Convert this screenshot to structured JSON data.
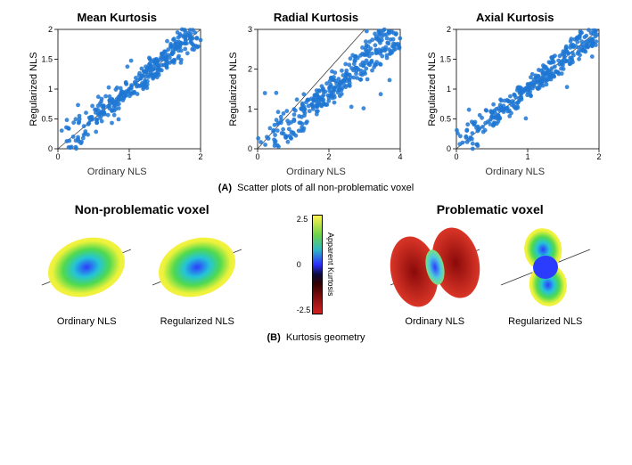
{
  "panelA": {
    "caption_bold": "(A)",
    "caption_text": "Scatter plots of all non-problematic voxel",
    "xlabel": "Ordinary NLS",
    "ylabel": "Regularized  NLS",
    "charts": [
      {
        "title": "Mean Kurtosis",
        "xlim": [
          0,
          2
        ],
        "ylim": [
          0,
          2
        ],
        "xticks": [
          0,
          1,
          2
        ],
        "yticks": [
          0,
          0.5,
          1,
          1.5,
          2
        ],
        "marker_color": "#1f77d4",
        "marker_size": 2.4,
        "diag_color": "#444444",
        "noise": 0.1,
        "n": 340,
        "seed": 17
      },
      {
        "title": "Radial Kurtosis",
        "xlim": [
          0,
          4
        ],
        "ylim": [
          0,
          3
        ],
        "xticks": [
          0,
          2,
          4
        ],
        "yticks": [
          0,
          1,
          2,
          3
        ],
        "marker_color": "#1f77d4",
        "marker_size": 2.4,
        "diag_color": "#444444",
        "noise": 0.14,
        "n": 360,
        "seed": 31
      },
      {
        "title": "Axial Kurtosis",
        "xlim": [
          0,
          2
        ],
        "ylim": [
          0,
          2
        ],
        "xticks": [
          0,
          1,
          2
        ],
        "yticks": [
          0,
          0.5,
          1,
          1.5,
          2
        ],
        "marker_color": "#1f77d4",
        "marker_size": 2.4,
        "diag_color": "#444444",
        "noise": 0.09,
        "n": 330,
        "seed": 53
      }
    ],
    "label_fontsize": 11,
    "tick_fontsize": 9
  },
  "panelB": {
    "caption_bold": "(B)",
    "caption_text": "Kurtosis geometry",
    "groups": [
      {
        "label": "Non-problematic voxel",
        "glyphs": [
          {
            "caption": "Ordinary NLS",
            "type": "lobe-normal"
          },
          {
            "caption": "Regularized NLS",
            "type": "lobe-normal"
          }
        ]
      },
      {
        "label": "Problematic voxel",
        "glyphs": [
          {
            "caption": "Ordinary NLS",
            "type": "butterfly-problem"
          },
          {
            "caption": "Regularized NLS",
            "type": "peanut-fix"
          }
        ]
      }
    ],
    "colorbar": {
      "label": "Apparent Kurtosis",
      "max": "2.5",
      "zero": "0",
      "min": "-2.5",
      "stops": [
        {
          "p": 0,
          "c": "#fff34d"
        },
        {
          "p": 20,
          "c": "#6ad24a"
        },
        {
          "p": 35,
          "c": "#2fb6c7"
        },
        {
          "p": 50,
          "c": "#2c2cff"
        },
        {
          "p": 60,
          "c": "#0b0b3a"
        },
        {
          "p": 70,
          "c": "#330000"
        },
        {
          "p": 85,
          "c": "#8a1010"
        },
        {
          "p": 100,
          "c": "#d42020"
        }
      ]
    }
  }
}
